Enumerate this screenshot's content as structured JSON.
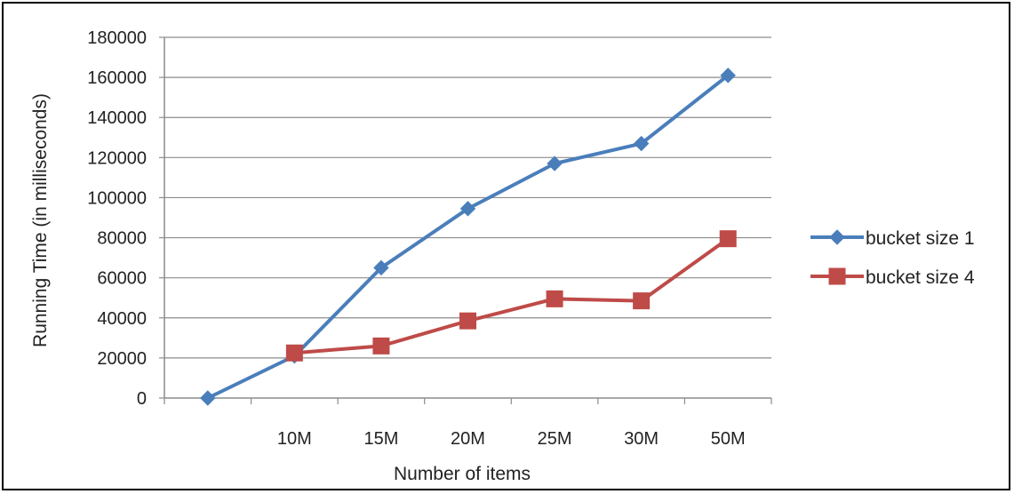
{
  "chart_data": {
    "type": "line",
    "title": "",
    "xlabel": "Number of items",
    "ylabel": "Running Time (in milliseconds)",
    "categories": [
      "",
      "10M",
      "15M",
      "20M",
      "25M",
      "30M",
      "50M"
    ],
    "ylim": [
      0,
      180000
    ],
    "yticks": [
      "0",
      "20000",
      "40000",
      "60000",
      "80000",
      "100000",
      "120000",
      "140000",
      "160000",
      "180000"
    ],
    "grid": true,
    "legend_position": "right",
    "series": [
      {
        "name": "bucket size 1",
        "color": "#4a7ebb",
        "marker": "diamond",
        "x": [
          "",
          "10M",
          "15M",
          "20M",
          "25M",
          "30M",
          "50M"
        ],
        "values": [
          0,
          21000,
          65000,
          94500,
          117000,
          127000,
          161000
        ]
      },
      {
        "name": "bucket size 4",
        "color": "#be4b48",
        "marker": "square",
        "x": [
          "10M",
          "15M",
          "20M",
          "25M",
          "30M",
          "50M"
        ],
        "values": [
          22500,
          26000,
          38500,
          49500,
          48500,
          79500
        ]
      }
    ]
  }
}
